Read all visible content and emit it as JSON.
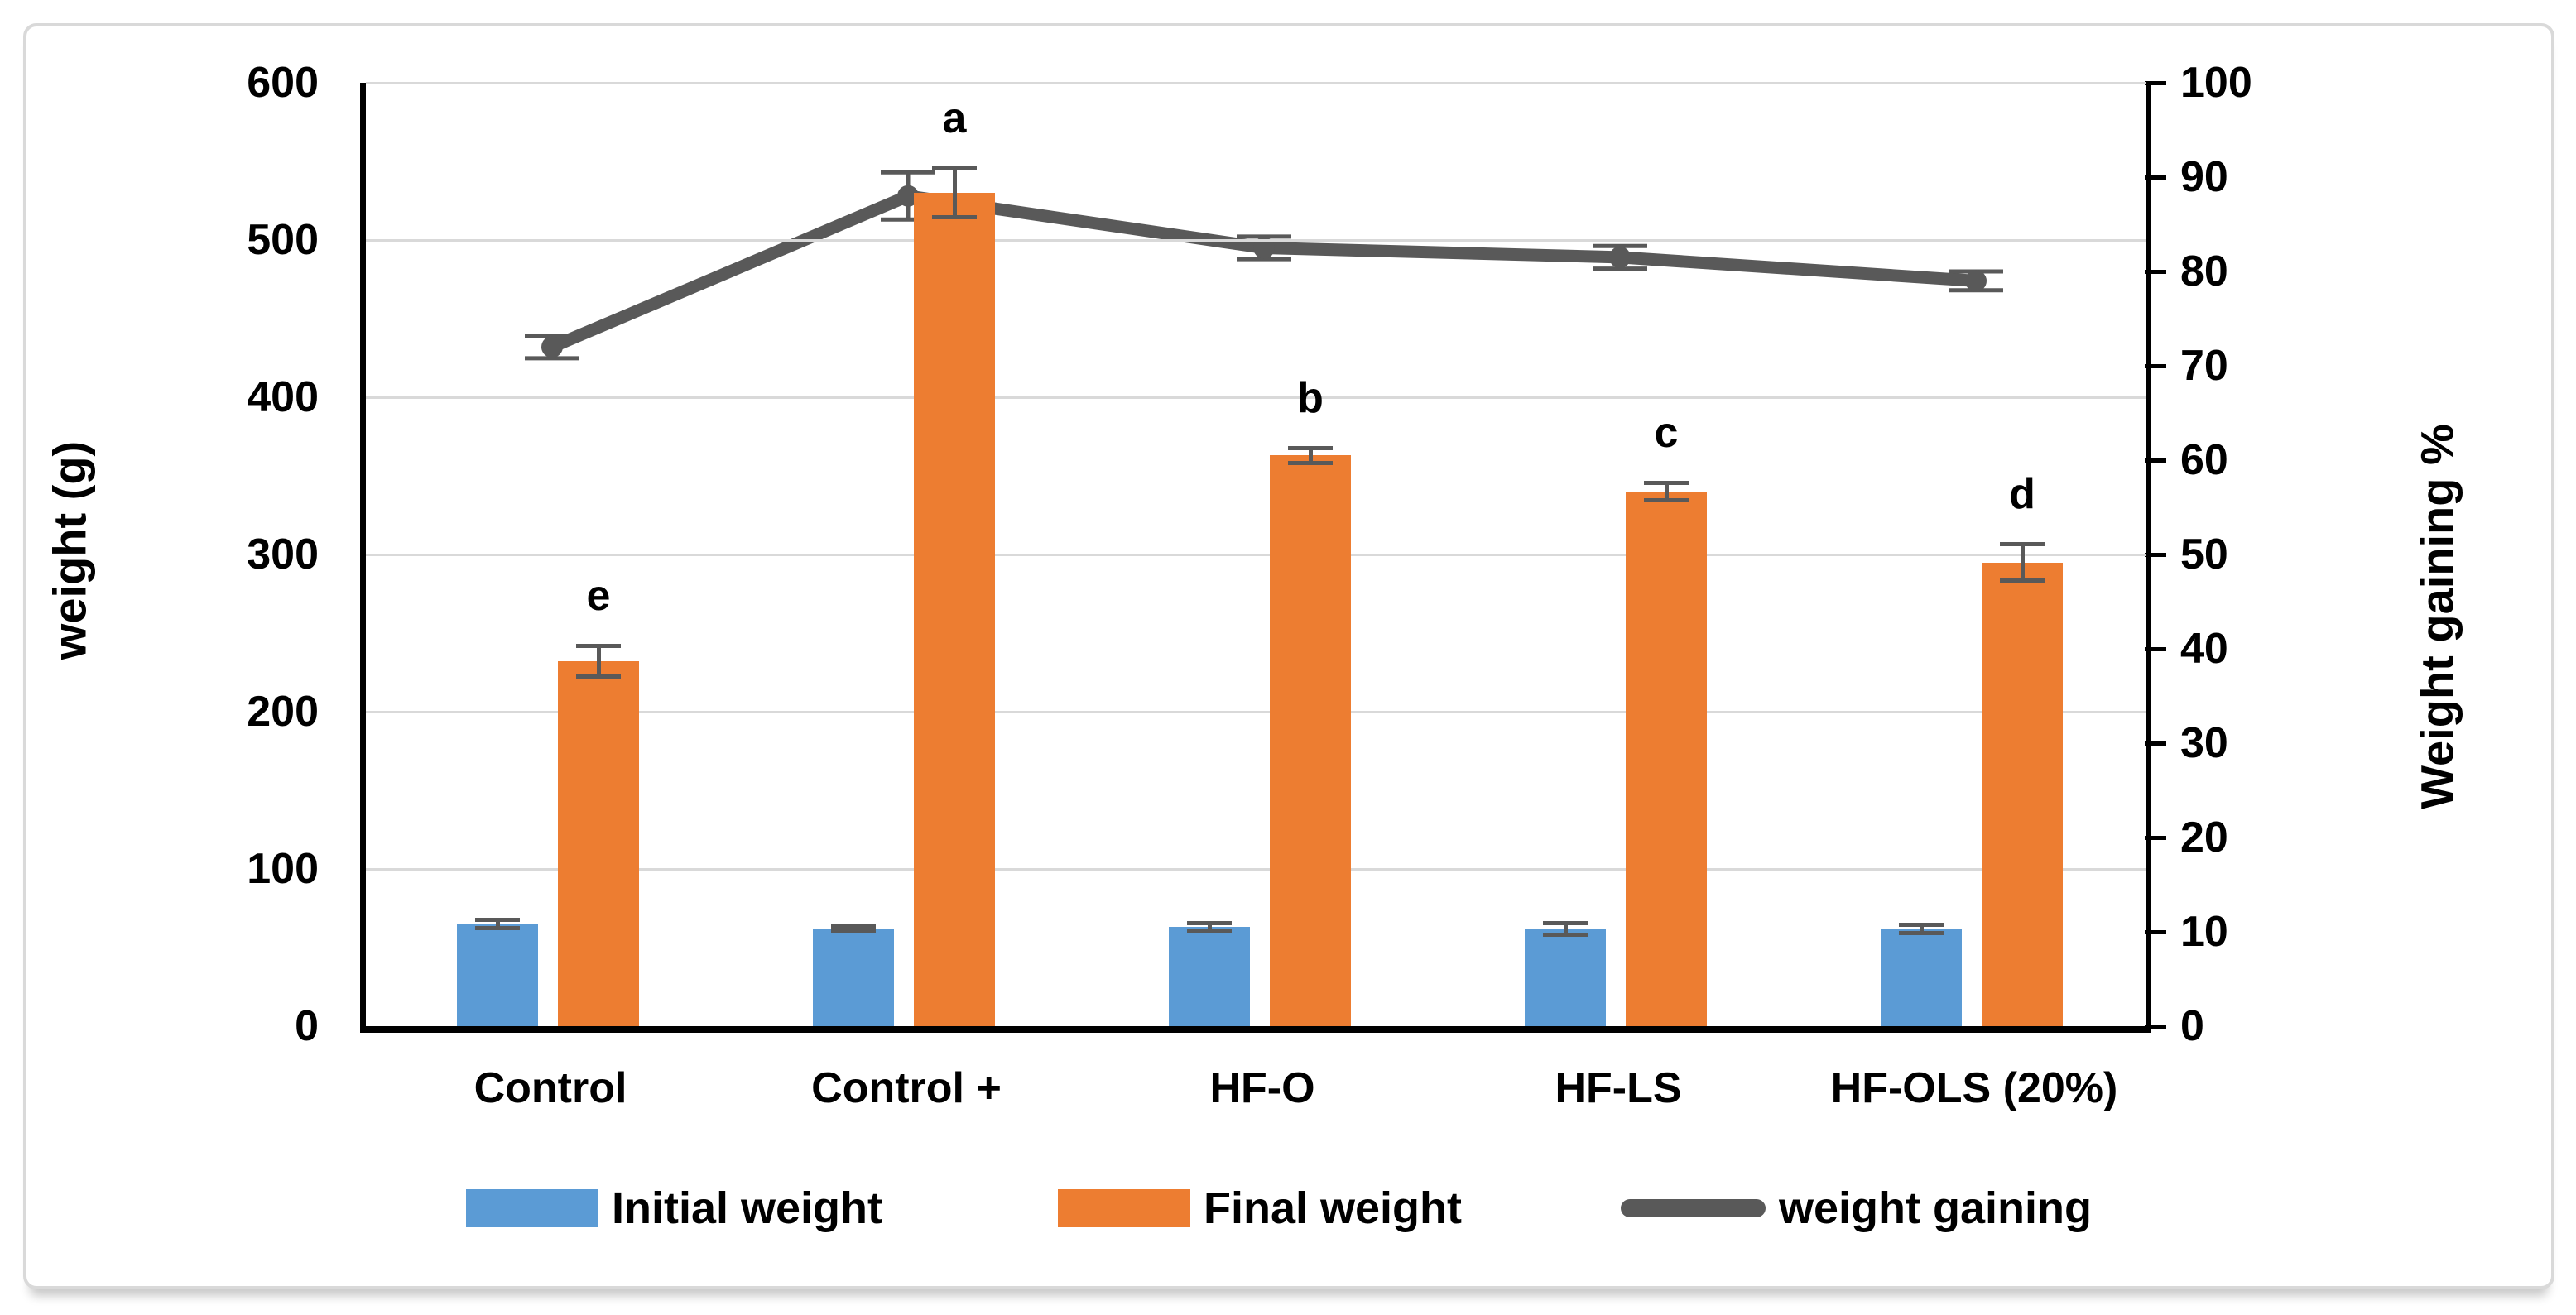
{
  "chart_data": {
    "type": "bar+line",
    "title": "",
    "categories": [
      "Control",
      "Control +",
      "HF-O",
      "HF-LS",
      "HF-OLS (20%)"
    ],
    "series": [
      {
        "name": "Initial weight",
        "type": "bar",
        "axis": "left",
        "color": "#5B9BD5",
        "values": [
          65,
          62,
          63,
          62,
          62
        ],
        "errors": [
          4,
          3,
          4,
          5,
          4
        ]
      },
      {
        "name": "Final weight",
        "type": "bar",
        "axis": "left",
        "color": "#ED7D31",
        "values": [
          232,
          530,
          363,
          340,
          295
        ],
        "errors": [
          11,
          17,
          6,
          7,
          13
        ],
        "point_labels": [
          "e",
          "a",
          "b",
          "c",
          "d"
        ]
      },
      {
        "name": "weight gaining",
        "type": "line",
        "axis": "right",
        "color": "#595959",
        "values": [
          72,
          88,
          82.5,
          81.5,
          79
        ],
        "errors": [
          1.2,
          2.5,
          1.2,
          1.2,
          1
        ]
      }
    ],
    "left_axis": {
      "title": "weight (g)",
      "min": 0,
      "max": 600,
      "tick_step": 100,
      "ticks": [
        "0",
        "100",
        "200",
        "300",
        "400",
        "500",
        "600"
      ]
    },
    "right_axis": {
      "title": "Weight gaining %",
      "min": 0,
      "max": 100,
      "tick_step": 10,
      "ticks": [
        "0",
        "10",
        "20",
        "30",
        "40",
        "50",
        "60",
        "70",
        "80",
        "90",
        "100"
      ]
    },
    "grid": "horizontal",
    "legend_position": "bottom",
    "colors": {
      "error_bar": "#595959",
      "gridline": "#D9D9D9",
      "axis": "#000000",
      "text": "#000000",
      "background": "#FFFFFF",
      "figure_border": "#D9D9D9"
    }
  },
  "legend": {
    "items": [
      {
        "label": "Initial weight",
        "swatch": "rect",
        "color": "#5B9BD5"
      },
      {
        "label": "Final weight",
        "swatch": "rect",
        "color": "#ED7D31"
      },
      {
        "label": "weight gaining",
        "swatch": "line",
        "color": "#595959"
      }
    ]
  }
}
